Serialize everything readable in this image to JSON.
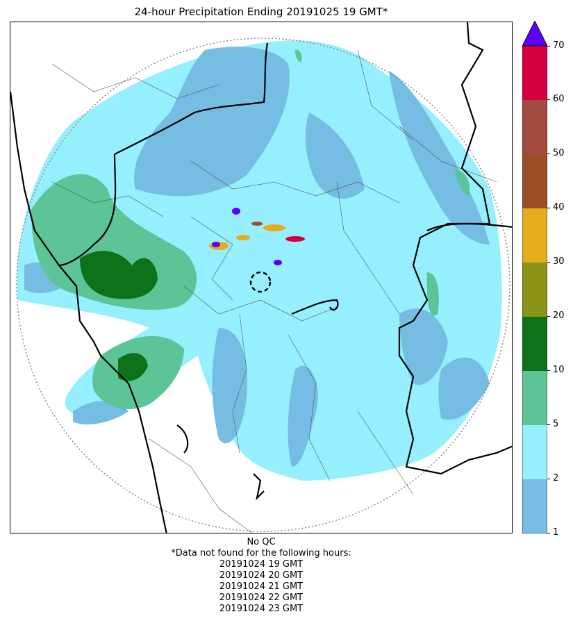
{
  "title": "24-hour Precipitation Ending 20191025 19 GMT*",
  "colorbar": {
    "ticks": [
      "1",
      "2",
      "5",
      "10",
      "20",
      "30",
      "40",
      "50",
      "60",
      "70"
    ],
    "colors": [
      "#76bde3",
      "#96effd",
      "#5cc496",
      "#0e7218",
      "#8b9419",
      "#e6ac1c",
      "#9c4e27",
      "#a34a41",
      "#d6003f"
    ],
    "extend_color": "#5a00f5"
  },
  "footer": {
    "qc": "No QC",
    "missing_note": "*Data not found for the following hours:",
    "missing_hours": [
      "20191024 19 GMT",
      "20191024 20 GMT",
      "20191024 21 GMT",
      "20191024 22 GMT",
      "20191024 23 GMT"
    ]
  },
  "map": {
    "range_ring_color": "#888888",
    "border_color": "#000000",
    "outline_color": "#555555"
  }
}
